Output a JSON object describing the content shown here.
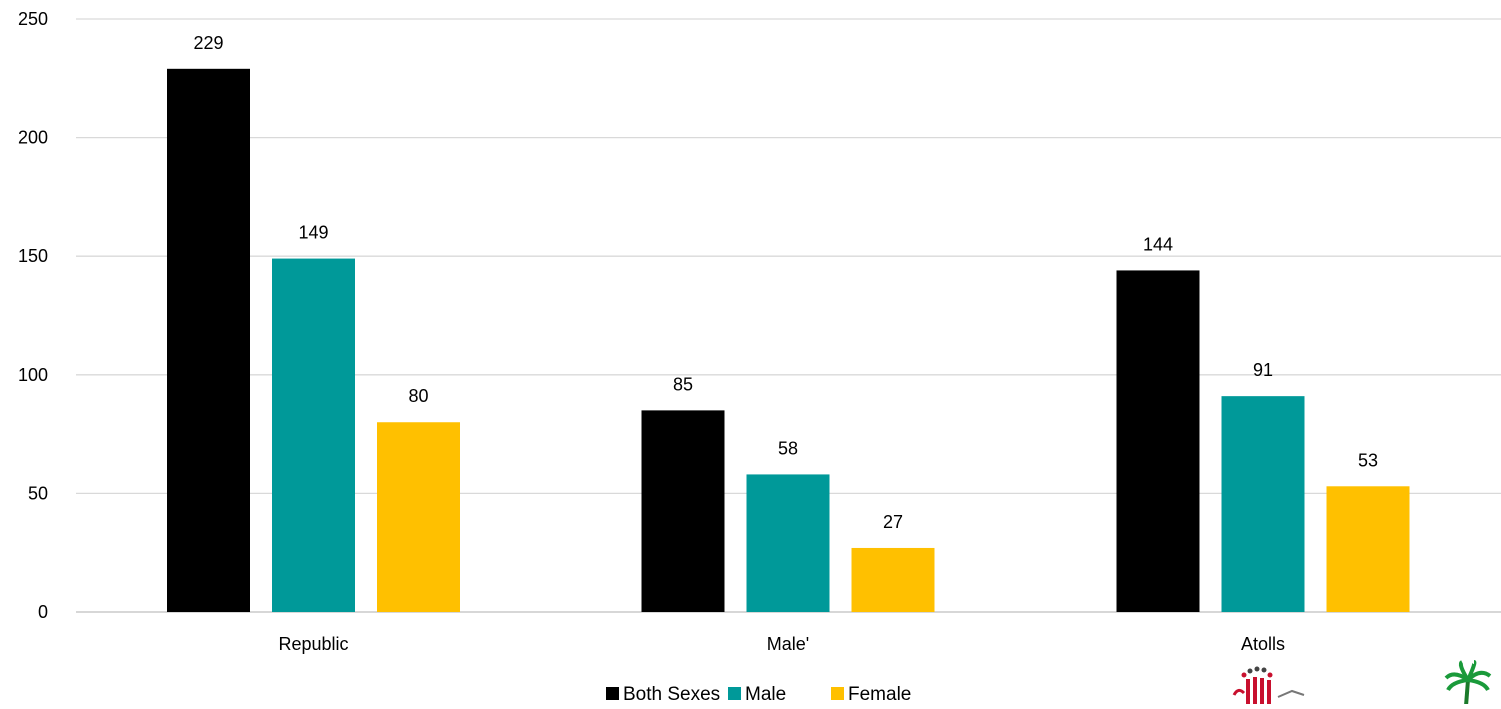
{
  "chart_data": {
    "type": "bar",
    "categories": [
      "Republic",
      "Male'",
      "Atolls"
    ],
    "series": [
      {
        "name": "Both Sexes",
        "values": [
          229,
          85,
          144
        ],
        "color": "#000000"
      },
      {
        "name": "Male",
        "values": [
          149,
          58,
          91
        ],
        "color": "#009999"
      },
      {
        "name": "Female",
        "values": [
          80,
          27,
          53
        ],
        "color": "#FFC000"
      }
    ],
    "ylim": [
      0,
      250
    ],
    "yticks": [
      0,
      50,
      100,
      150,
      200,
      250
    ],
    "grid": true,
    "legend_position": "bottom",
    "logos": [
      "census-logo-icon",
      "palm-tree-logo-icon"
    ]
  }
}
